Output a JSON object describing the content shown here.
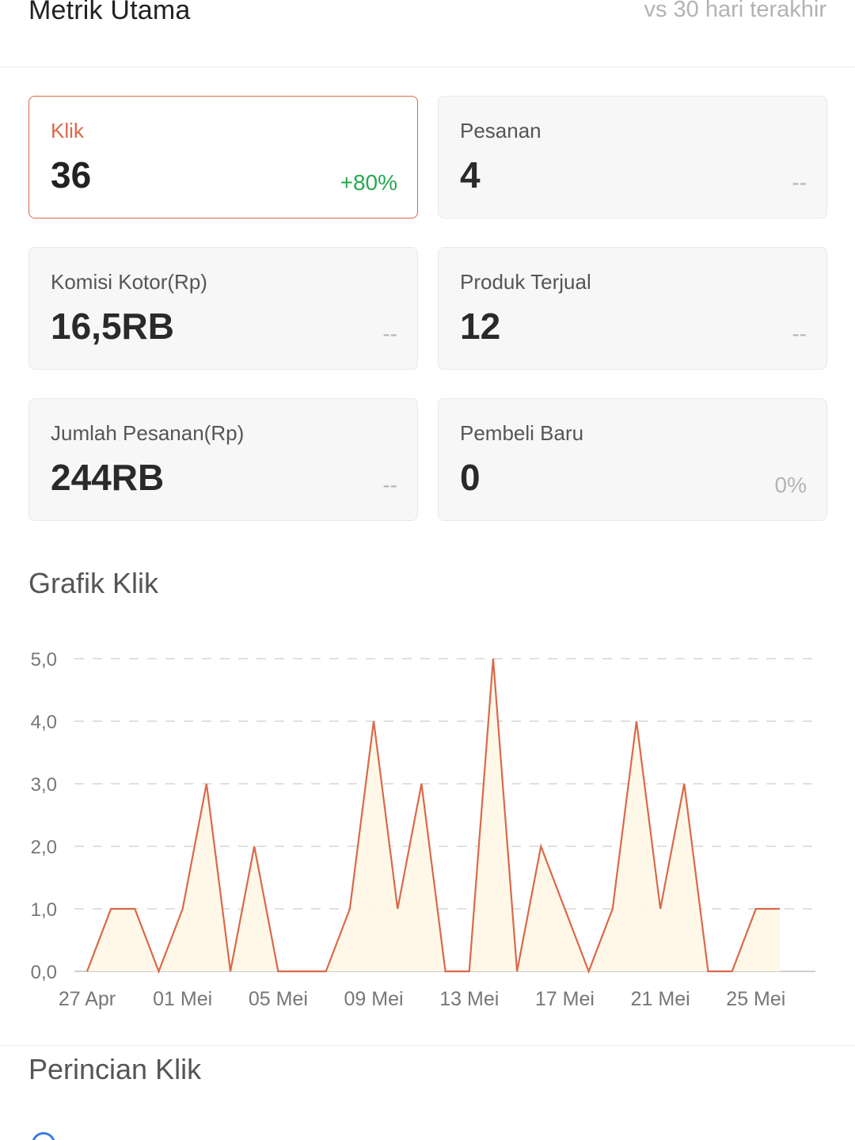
{
  "header": {
    "title": "Metrik Utama",
    "compare_label": "vs 30 hari terakhir"
  },
  "metrics": [
    {
      "label": "Klik",
      "value": "36",
      "change": "+80%",
      "active": true
    },
    {
      "label": "Pesanan",
      "value": "4",
      "change": "--"
    },
    {
      "label": "Komisi Kotor(Rp)",
      "value": "16,5RB",
      "change": "--"
    },
    {
      "label": "Produk Terjual",
      "value": "12",
      "change": "--"
    },
    {
      "label": "Jumlah Pesanan(Rp)",
      "value": "244RB",
      "change": "--"
    },
    {
      "label": "Pembeli Baru",
      "value": "0",
      "change": "0%"
    }
  ],
  "chart_section": {
    "title": "Grafik Klik"
  },
  "details_section": {
    "title": "Perincian Klik"
  },
  "colors": {
    "accent": "#d9694a",
    "positive": "#27a851",
    "fill": "#fff7e6"
  },
  "chart_data": {
    "type": "area",
    "x": [
      "27 Apr",
      "28 Apr",
      "29 Apr",
      "30 Apr",
      "01 Mei",
      "02 Mei",
      "03 Mei",
      "04 Mei",
      "05 Mei",
      "06 Mei",
      "07 Mei",
      "08 Mei",
      "09 Mei",
      "10 Mei",
      "11 Mei",
      "12 Mei",
      "13 Mei",
      "14 Mei",
      "15 Mei",
      "16 Mei",
      "17 Mei",
      "18 Mei",
      "19 Mei",
      "20 Mei",
      "21 Mei",
      "22 Mei",
      "23 Mei",
      "24 Mei",
      "25 Mei",
      "26 Mei"
    ],
    "series": [
      {
        "values": [
          0,
          1,
          1,
          0,
          1,
          3,
          0,
          2,
          0,
          0,
          0,
          1,
          4,
          1,
          3,
          0,
          0,
          5,
          0,
          2,
          1,
          0,
          1,
          4,
          1,
          3,
          0,
          0,
          1,
          1
        ]
      }
    ],
    "xtick_labels": [
      "27 Apr",
      "01 Mei",
      "05 Mei",
      "09 Mei",
      "13 Mei",
      "17 Mei",
      "21 Mei",
      "25 Mei"
    ],
    "ytick_labels": [
      "0,0",
      "1,0",
      "2,0",
      "3,0",
      "4,0",
      "5,0"
    ],
    "ylim": [
      0,
      5
    ],
    "grid": true
  }
}
